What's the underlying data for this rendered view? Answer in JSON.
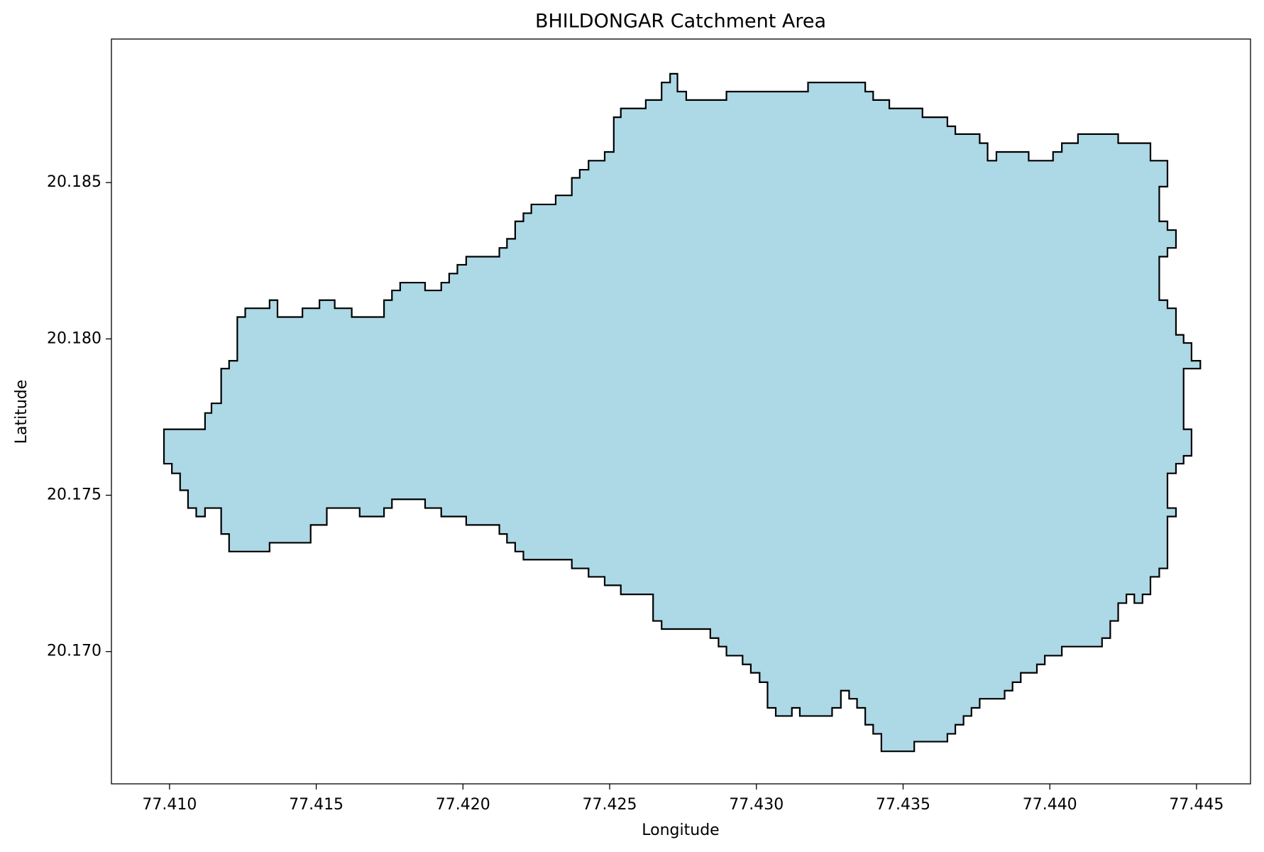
{
  "chart_data": {
    "type": "polygon",
    "title": "BHILDONGAR Catchment Area",
    "xlabel": "Longitude",
    "ylabel": "Latitude",
    "color": "#add8e6",
    "edgecolor": "#000000",
    "xlim": [
      77.40802,
      77.44684
    ],
    "ylim": [
      20.16577,
      20.18959
    ],
    "xticks": [
      {
        "value": 77.41,
        "label": "77.410"
      },
      77.415,
      {
        "value": 77.42,
        "label": "77.420"
      },
      77.425,
      {
        "value": 77.43,
        "label": "77.430"
      },
      77.435,
      {
        "value": 77.44,
        "label": "77.440"
      },
      77.445
    ],
    "yticks": [
      {
        "value": 20.17,
        "label": "20.170"
      },
      20.175,
      {
        "value": 20.18,
        "label": "20.180"
      },
      20.185
    ],
    "x": [
      77.40981,
      77.41121,
      77.41121,
      77.41143,
      77.41143,
      77.41176,
      77.41176,
      77.41203,
      77.41203,
      77.41231,
      77.41231,
      77.41258,
      77.41258,
      77.41341,
      77.41341,
      77.41368,
      77.41368,
      77.41453,
      77.41453,
      77.41511,
      77.41511,
      77.41563,
      77.41563,
      77.41621,
      77.41621,
      77.41731,
      77.41731,
      77.41758,
      77.41758,
      77.41786,
      77.41786,
      77.41871,
      77.41871,
      77.41926,
      77.41926,
      77.41953,
      77.41953,
      77.41981,
      77.41981,
      77.42011,
      77.42011,
      77.42124,
      77.42124,
      77.4215,
      77.4215,
      77.42178,
      77.42178,
      77.42206,
      77.42206,
      77.42233,
      77.42233,
      77.42316,
      77.42316,
      77.42371,
      77.42371,
      77.42398,
      77.42398,
      77.42428,
      77.42428,
      77.42483,
      77.42483,
      77.42514,
      77.42514,
      77.42538,
      77.42538,
      77.42623,
      77.42623,
      77.42677,
      77.42677,
      77.42706,
      77.42706,
      77.42731,
      77.42731,
      77.42761,
      77.42761,
      77.42898,
      77.42898,
      77.43176,
      77.43176,
      77.43371,
      77.43371,
      77.43398,
      77.43398,
      77.43453,
      77.43453,
      77.43566,
      77.43566,
      77.43651,
      77.43651,
      77.43678,
      77.43678,
      77.43761,
      77.43761,
      77.43788,
      77.43788,
      77.43818,
      77.43818,
      77.43928,
      77.43928,
      77.44011,
      77.44011,
      77.44041,
      77.44041,
      77.44096,
      77.44096,
      77.44233,
      77.44233,
      77.44343,
      77.44343,
      77.44401,
      77.44401,
      77.44373,
      77.44373,
      77.44401,
      77.44401,
      77.4443,
      77.4443,
      77.44401,
      77.44401,
      77.44373,
      77.44373,
      77.44401,
      77.44401,
      77.4443,
      77.4443,
      77.44456,
      77.44456,
      77.44483,
      77.44483,
      77.44513,
      77.44513,
      77.44456,
      77.44456,
      77.44483,
      77.44483,
      77.44456,
      77.44456,
      77.4443,
      77.4443,
      77.44401,
      77.44401,
      77.4443,
      77.4443,
      77.44401,
      77.44401,
      77.44373,
      77.44373,
      77.44343,
      77.44343,
      77.44316,
      77.44316,
      77.44288,
      77.44288,
      77.44261,
      77.44261,
      77.44233,
      77.44233,
      77.44206,
      77.44206,
      77.44178,
      77.44178,
      77.44041,
      77.44041,
      77.43983,
      77.43983,
      77.43956,
      77.43956,
      77.43901,
      77.43901,
      77.43873,
      77.43873,
      77.43846,
      77.43846,
      77.43761,
      77.43761,
      77.43733,
      77.43733,
      77.43706,
      77.43706,
      77.43678,
      77.43678,
      77.43651,
      77.43651,
      77.43538,
      77.43538,
      77.43426,
      77.43426,
      77.43398,
      77.43398,
      77.43371,
      77.43371,
      77.43343,
      77.43343,
      77.43316,
      77.43316,
      77.43288,
      77.43288,
      77.43258,
      77.43258,
      77.43148,
      77.43148,
      77.43121,
      77.43121,
      77.43066,
      77.43066,
      77.43038,
      77.43038,
      77.43011,
      77.43011,
      77.42981,
      77.42981,
      77.42953,
      77.42953,
      77.42898,
      77.42898,
      77.42871,
      77.42871,
      77.42843,
      77.42843,
      77.42677,
      77.42677,
      77.42648,
      77.42648,
      77.42538,
      77.42538,
      77.42483,
      77.42483,
      77.42428,
      77.42428,
      77.42371,
      77.42371,
      77.42206,
      77.42206,
      77.42178,
      77.42178,
      77.4215,
      77.4215,
      77.42124,
      77.42124,
      77.42011,
      77.42011,
      77.41926,
      77.41926,
      77.41871,
      77.41871,
      77.41758,
      77.41758,
      77.41731,
      77.41731,
      77.41648,
      77.41648,
      77.41536,
      77.41536,
      77.41481,
      77.41481,
      77.41341,
      77.41341,
      77.41203,
      77.41203,
      77.41176,
      77.41176,
      77.41121,
      77.41121,
      77.41091,
      77.41091,
      77.41063,
      77.41063,
      77.41036,
      77.41036,
      77.41008,
      77.41008,
      77.40981
    ],
    "y": [
      20.17711,
      20.17711,
      20.17763,
      20.17763,
      20.17794,
      20.17794,
      20.17905,
      20.17905,
      20.1793,
      20.1793,
      20.1807,
      20.1807,
      20.18098,
      20.18098,
      20.18124,
      20.18124,
      20.1807,
      20.1807,
      20.18098,
      20.18098,
      20.18124,
      20.18124,
      20.18098,
      20.18098,
      20.1807,
      20.1807,
      20.18124,
      20.18124,
      20.18155,
      20.18155,
      20.1818,
      20.1818,
      20.18155,
      20.18155,
      20.1818,
      20.1818,
      20.18209,
      20.18209,
      20.18237,
      20.18237,
      20.18263,
      20.18263,
      20.18291,
      20.18291,
      20.1832,
      20.1832,
      20.18376,
      20.18376,
      20.18402,
      20.18402,
      20.1843,
      20.1843,
      20.18459,
      20.18459,
      20.18515,
      20.18515,
      20.18541,
      20.18541,
      20.1857,
      20.1857,
      20.18598,
      20.18598,
      20.18709,
      20.18709,
      20.18737,
      20.18737,
      20.18764,
      20.18764,
      20.1882,
      20.1882,
      20.18848,
      20.18848,
      20.18791,
      20.18791,
      20.18764,
      20.18764,
      20.18791,
      20.18791,
      20.1882,
      20.1882,
      20.18791,
      20.18791,
      20.18764,
      20.18764,
      20.18737,
      20.18737,
      20.18709,
      20.18709,
      20.1868,
      20.1868,
      20.18655,
      20.18655,
      20.18626,
      20.18626,
      20.1857,
      20.1857,
      20.18598,
      20.18598,
      20.1857,
      20.1857,
      20.18598,
      20.18598,
      20.18626,
      20.18626,
      20.18655,
      20.18655,
      20.18626,
      20.18626,
      20.1857,
      20.1857,
      20.18487,
      20.18487,
      20.18376,
      20.18376,
      20.18348,
      20.18348,
      20.18291,
      20.18291,
      20.18263,
      20.18263,
      20.18124,
      20.18124,
      20.18098,
      20.18098,
      20.18013,
      20.18013,
      20.17987,
      20.17987,
      20.1793,
      20.1793,
      20.17905,
      20.17905,
      20.17711,
      20.17711,
      20.17626,
      20.17626,
      20.17601,
      20.17601,
      20.1757,
      20.1757,
      20.17459,
      20.17459,
      20.17432,
      20.17432,
      20.17266,
      20.17266,
      20.17239,
      20.17239,
      20.17183,
      20.17183,
      20.17155,
      20.17155,
      20.17183,
      20.17183,
      20.17155,
      20.17155,
      20.17098,
      20.17098,
      20.17043,
      20.17043,
      20.17016,
      20.17016,
      20.16987,
      20.16987,
      20.16959,
      20.16959,
      20.16932,
      20.16932,
      20.16902,
      20.16902,
      20.16875,
      20.16875,
      20.16849,
      20.16849,
      20.1682,
      20.1682,
      20.16794,
      20.16794,
      20.16766,
      20.16766,
      20.16737,
      20.16737,
      20.16712,
      20.16712,
      20.16681,
      20.16681,
      20.16737,
      20.16737,
      20.16766,
      20.16766,
      20.1682,
      20.1682,
      20.16849,
      20.16849,
      20.16875,
      20.16875,
      20.1682,
      20.1682,
      20.16794,
      20.16794,
      20.1682,
      20.1682,
      20.16794,
      20.16794,
      20.1682,
      20.1682,
      20.16902,
      20.16902,
      20.16932,
      20.16932,
      20.16959,
      20.16959,
      20.16987,
      20.16987,
      20.17016,
      20.17016,
      20.17043,
      20.17043,
      20.17072,
      20.17072,
      20.17098,
      20.17098,
      20.17183,
      20.17183,
      20.17212,
      20.17212,
      20.17239,
      20.17239,
      20.17266,
      20.17266,
      20.17294,
      20.17294,
      20.1732,
      20.1732,
      20.17348,
      20.17348,
      20.17376,
      20.17376,
      20.17405,
      20.17405,
      20.17432,
      20.17432,
      20.17459,
      20.17459,
      20.17487,
      20.17487,
      20.17459,
      20.17459,
      20.17432,
      20.17432,
      20.17459,
      20.17459,
      20.17405,
      20.17405,
      20.17348,
      20.17348,
      20.1732,
      20.1732,
      20.17376,
      20.17376,
      20.17459,
      20.17459,
      20.17432,
      20.17432,
      20.17459,
      20.17459,
      20.17516,
      20.17516,
      20.1757,
      20.1757,
      20.17601,
      20.17601
    ]
  }
}
